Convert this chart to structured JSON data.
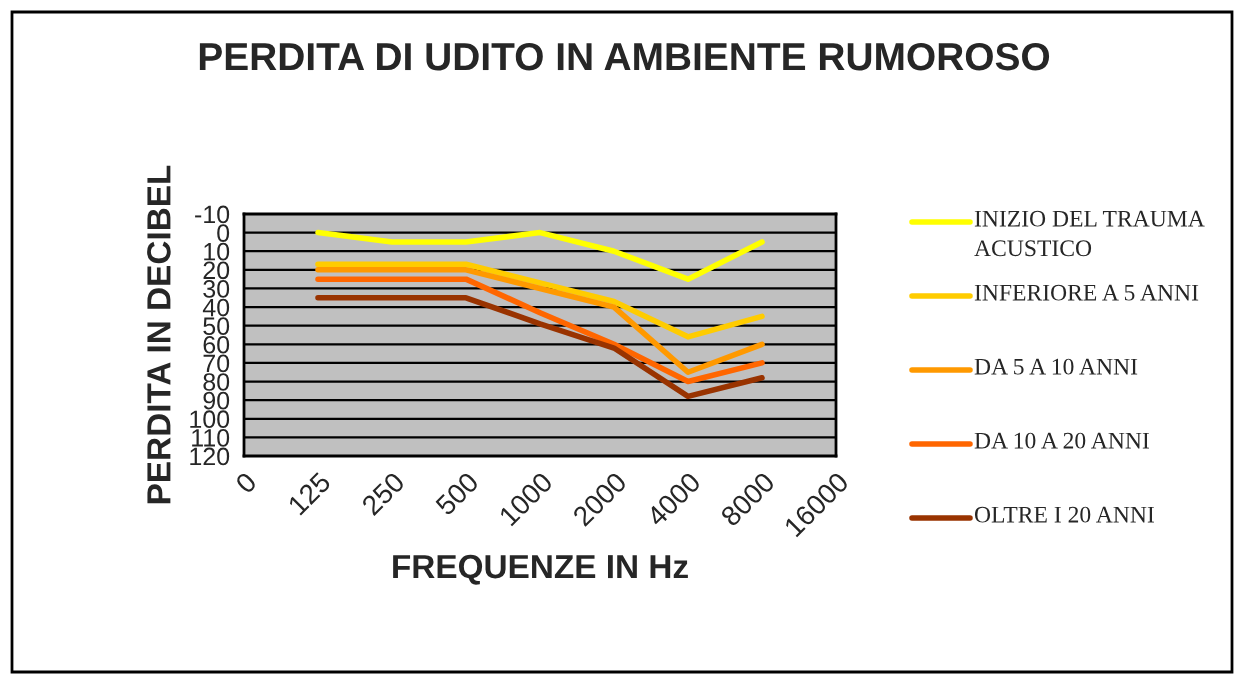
{
  "chart_data": {
    "type": "line",
    "title": "PERDITA DI UDITO IN AMBIENTE RUMOROSO",
    "xlabel": "FREQUENZE IN Hz",
    "ylabel": "PERDITA IN DECIBEL",
    "categories": [
      "0",
      "125",
      "250",
      "500",
      "1000",
      "2000",
      "4000",
      "8000",
      "16000"
    ],
    "series": [
      {
        "name": "INIZIO DEL TRAUMA ACUSTICO",
        "color": "#ffff00",
        "values": [
          null,
          0,
          5,
          5,
          0,
          10,
          25,
          5,
          null
        ]
      },
      {
        "name": "INFERIORE A 5 ANNI",
        "color": "#ffcc00",
        "values": [
          null,
          17,
          17,
          17,
          27,
          37,
          56,
          45,
          null
        ]
      },
      {
        "name": "DA 5 A 10 ANNI",
        "color": "#ff9900",
        "values": [
          null,
          20,
          20,
          20,
          30,
          40,
          75,
          60,
          null
        ]
      },
      {
        "name": "DA 10 A 20 ANNI",
        "color": "#ff6600",
        "values": [
          null,
          25,
          25,
          25,
          43,
          60,
          80,
          70,
          null
        ]
      },
      {
        "name": "OLTRE I 20 ANNI",
        "color": "#993300",
        "values": [
          null,
          35,
          35,
          35,
          49,
          62,
          88,
          78,
          null
        ]
      }
    ],
    "ylim": [
      120,
      -10
    ],
    "yticks": [
      -10,
      0,
      10,
      20,
      30,
      40,
      50,
      60,
      70,
      80,
      90,
      100,
      110,
      120
    ],
    "grid": "y",
    "legend": "right",
    "marker": "none",
    "line_style": "solid"
  }
}
